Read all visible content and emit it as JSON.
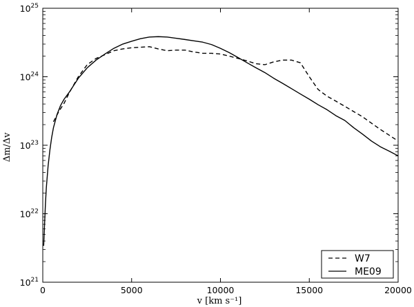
{
  "chart_data": {
    "type": "line",
    "xlabel": "v  [km  s⁻¹]",
    "ylabel": "Δm/Δv",
    "xlim": [
      0,
      20000
    ],
    "ylim": [
      1e+21,
      1e+25
    ],
    "yscale": "log",
    "grid": false,
    "legend_position": "bottom-right",
    "x_ticks": [
      {
        "value": 0,
        "label": "0"
      },
      {
        "value": 5000,
        "label": "5000"
      },
      {
        "value": 10000,
        "label": "10000"
      },
      {
        "value": 15000,
        "label": "15000"
      },
      {
        "value": 20000,
        "label": "20000"
      }
    ],
    "y_ticks": [
      {
        "value": 1e+21,
        "base": "10",
        "exp": "21"
      },
      {
        "value": 1e+22,
        "base": "10",
        "exp": "22"
      },
      {
        "value": 1e+23,
        "base": "10",
        "exp": "23"
      },
      {
        "value": 1e+24,
        "base": "10",
        "exp": "24"
      },
      {
        "value": 1e+25,
        "base": "10",
        "exp": "25"
      }
    ],
    "series": [
      {
        "name": "W7",
        "style": "dashed",
        "color": "#000000",
        "points": [
          [
            600,
            2.2e+23
          ],
          [
            900,
            3.1e+23
          ],
          [
            1200,
            4.1e+23
          ],
          [
            1500,
            5.9e+23
          ],
          [
            2000,
            1e+24
          ],
          [
            2500,
            1.5e+24
          ],
          [
            3000,
            1.85e+24
          ],
          [
            3500,
            2.1e+24
          ],
          [
            4000,
            2.4e+24
          ],
          [
            4500,
            2.55e+24
          ],
          [
            5000,
            2.65e+24
          ],
          [
            5500,
            2.7e+24
          ],
          [
            6000,
            2.75e+24
          ],
          [
            6500,
            2.55e+24
          ],
          [
            7000,
            2.4e+24
          ],
          [
            7500,
            2.45e+24
          ],
          [
            8000,
            2.45e+24
          ],
          [
            8500,
            2.3e+24
          ],
          [
            9000,
            2.2e+24
          ],
          [
            9500,
            2.2e+24
          ],
          [
            10000,
            2.15e+24
          ],
          [
            10500,
            2e+24
          ],
          [
            11000,
            1.85e+24
          ],
          [
            11500,
            1.7e+24
          ],
          [
            12000,
            1.55e+24
          ],
          [
            12500,
            1.5e+24
          ],
          [
            13000,
            1.65e+24
          ],
          [
            13500,
            1.75e+24
          ],
          [
            14000,
            1.75e+24
          ],
          [
            14500,
            1.6e+24
          ],
          [
            15000,
            1e+24
          ],
          [
            15500,
            6.5e+23
          ],
          [
            16000,
            5.2e+23
          ],
          [
            16500,
            4.4e+23
          ],
          [
            17000,
            3.7e+23
          ],
          [
            17500,
            3.1e+23
          ],
          [
            18000,
            2.6e+23
          ],
          [
            18500,
            2.1e+23
          ],
          [
            19000,
            1.7e+23
          ],
          [
            19500,
            1.4e+23
          ],
          [
            20000,
            1.15e+23
          ]
        ]
      },
      {
        "name": "ME09",
        "style": "solid",
        "color": "#000000",
        "points": [
          [
            50,
            3.4e+21
          ],
          [
            100,
            7e+21
          ],
          [
            150,
            1.4e+22
          ],
          [
            200,
            2.4e+22
          ],
          [
            300,
            5e+22
          ],
          [
            400,
            8.5e+22
          ],
          [
            500,
            1.3e+23
          ],
          [
            600,
            1.8e+23
          ],
          [
            800,
            2.8e+23
          ],
          [
            1000,
            3.8e+23
          ],
          [
            1200,
            4.7e+23
          ],
          [
            1500,
            6e+23
          ],
          [
            2000,
            9.5e+23
          ],
          [
            2500,
            1.35e+24
          ],
          [
            3000,
            1.75e+24
          ],
          [
            3500,
            2.15e+24
          ],
          [
            4000,
            2.6e+24
          ],
          [
            4500,
            3e+24
          ],
          [
            5000,
            3.3e+24
          ],
          [
            5500,
            3.6e+24
          ],
          [
            6000,
            3.8e+24
          ],
          [
            6500,
            3.85e+24
          ],
          [
            7000,
            3.8e+24
          ],
          [
            7500,
            3.65e+24
          ],
          [
            8000,
            3.5e+24
          ],
          [
            8500,
            3.35e+24
          ],
          [
            9000,
            3.2e+24
          ],
          [
            9500,
            2.95e+24
          ],
          [
            10000,
            2.6e+24
          ],
          [
            10500,
            2.25e+24
          ],
          [
            11000,
            1.9e+24
          ],
          [
            11500,
            1.6e+24
          ],
          [
            12000,
            1.35e+24
          ],
          [
            12500,
            1.15e+24
          ],
          [
            13000,
            9.5e+23
          ],
          [
            13500,
            8e+23
          ],
          [
            14000,
            6.7e+23
          ],
          [
            14500,
            5.6e+23
          ],
          [
            15000,
            4.7e+23
          ],
          [
            15500,
            3.9e+23
          ],
          [
            16000,
            3.3e+23
          ],
          [
            16500,
            2.7e+23
          ],
          [
            17000,
            2.3e+23
          ],
          [
            17500,
            1.8e+23
          ],
          [
            18000,
            1.45e+23
          ],
          [
            18500,
            1.15e+23
          ],
          [
            19000,
            9.5e+22
          ],
          [
            19500,
            8.2e+22
          ],
          [
            20000,
            7e+22
          ]
        ]
      }
    ]
  }
}
